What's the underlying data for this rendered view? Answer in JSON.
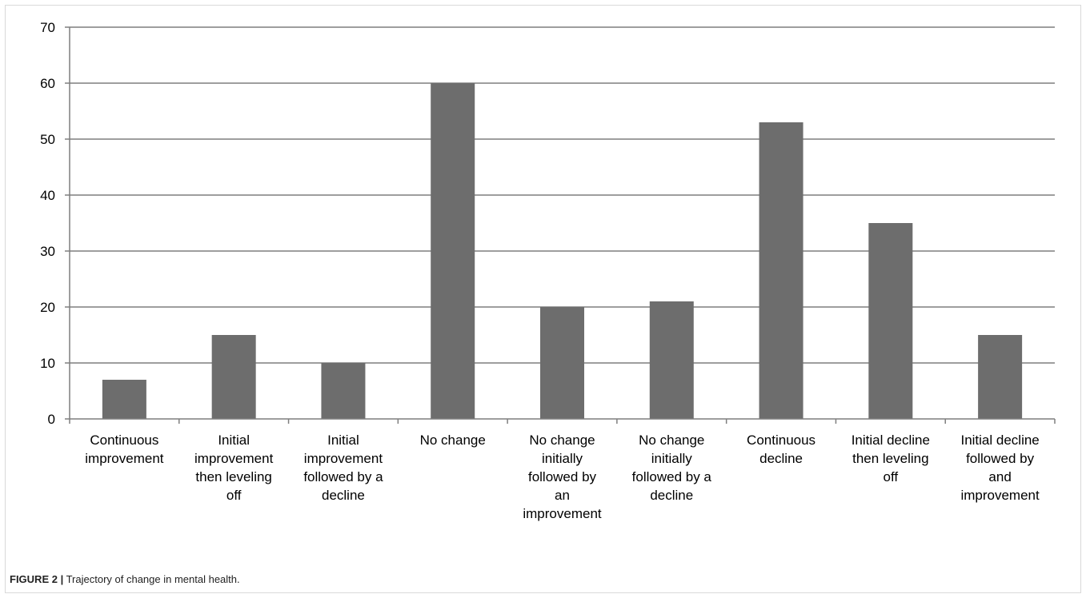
{
  "chart_data": {
    "type": "bar",
    "categories": [
      [
        "Continuous",
        "improvement"
      ],
      [
        "Initial",
        "improvement",
        "then leveling",
        "off"
      ],
      [
        "Initial",
        "improvement",
        "followed by a",
        "decline"
      ],
      [
        "No change"
      ],
      [
        "No change",
        "initially",
        "followed by",
        "an",
        "improvement"
      ],
      [
        "No change",
        "initially",
        "followed by a",
        "decline"
      ],
      [
        "Continuous",
        "decline"
      ],
      [
        "Initial decline",
        "then leveling",
        "off"
      ],
      [
        "Initial decline",
        "followed by",
        "and",
        "improvement"
      ]
    ],
    "values": [
      7,
      15,
      10,
      60,
      20,
      21,
      53,
      35,
      15
    ],
    "ylim": [
      0,
      70
    ],
    "yticks": [
      0,
      10,
      20,
      30,
      40,
      50,
      60,
      70
    ],
    "grid": true,
    "bar_color": "#6d6d6d",
    "grid_color": "#7f7f7f"
  },
  "caption": {
    "label": "FIGURE 2 |",
    "text": "Trajectory of change in mental health."
  }
}
